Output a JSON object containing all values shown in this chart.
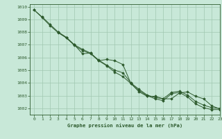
{
  "title": "Graphe pression niveau de la mer (hPa)",
  "bg_color": "#c8e8d8",
  "grid_color": "#a0c8b0",
  "line_color": "#2d5a2d",
  "marker_color": "#2d5a2d",
  "xlim": [
    -0.5,
    23
  ],
  "ylim": [
    1001.5,
    1010.2
  ],
  "xticks": [
    0,
    1,
    2,
    3,
    4,
    5,
    6,
    7,
    8,
    9,
    10,
    11,
    12,
    13,
    14,
    15,
    16,
    17,
    18,
    19,
    20,
    21,
    22,
    23
  ],
  "yticks": [
    1002,
    1003,
    1004,
    1005,
    1006,
    1007,
    1008,
    1009,
    1010
  ],
  "line1_x": [
    0,
    1,
    2,
    3,
    4,
    5,
    6,
    7,
    8,
    9,
    10,
    11,
    12,
    13,
    14,
    15,
    16,
    17,
    18,
    19,
    20,
    21,
    22,
    23
  ],
  "line1_y": [
    1009.75,
    1009.2,
    1008.6,
    1008.0,
    1007.6,
    1007.0,
    1006.65,
    1006.35,
    1005.8,
    1005.4,
    1005.0,
    1004.8,
    1004.0,
    1003.5,
    1003.05,
    1002.85,
    1002.75,
    1003.25,
    1003.35,
    1003.05,
    1002.55,
    1002.25,
    1002.05,
    1002.0
  ],
  "line2_x": [
    0,
    1,
    2,
    3,
    4,
    5,
    6,
    7,
    8,
    9,
    10,
    11,
    12,
    13,
    14,
    15,
    16,
    17,
    18,
    19,
    20,
    21,
    22,
    23
  ],
  "line2_y": [
    1009.75,
    1009.15,
    1008.5,
    1007.95,
    1007.55,
    1006.95,
    1006.55,
    1006.3,
    1005.75,
    1005.35,
    1004.85,
    1004.5,
    1003.95,
    1003.4,
    1003.0,
    1002.75,
    1002.6,
    1003.15,
    1003.25,
    1002.9,
    1002.35,
    1002.05,
    1001.9,
    1001.9
  ],
  "line3_x": [
    3,
    4,
    5,
    6,
    7,
    8,
    9,
    10,
    11,
    12,
    13,
    14,
    15,
    16,
    17,
    18,
    19,
    20,
    21,
    22,
    23
  ],
  "line3_y": [
    1008.0,
    1007.55,
    1007.0,
    1006.3,
    1006.35,
    1005.75,
    1005.85,
    1005.75,
    1005.45,
    1003.95,
    1003.3,
    1002.95,
    1002.95,
    1002.75,
    1002.75,
    1003.2,
    1003.3,
    1002.95,
    1002.75,
    1002.2,
    1001.95
  ]
}
